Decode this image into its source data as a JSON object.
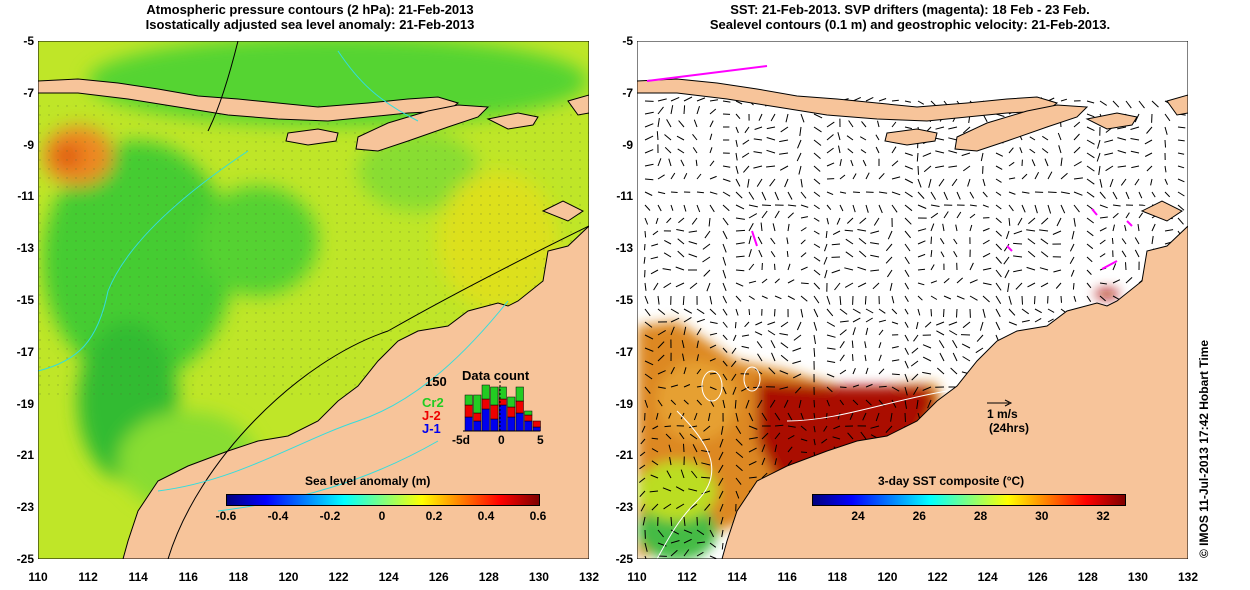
{
  "left_panel": {
    "title_line1": "Atmospheric pressure contours (2 hPa): 21-Feb-2013",
    "title_line2": "Isostatically adjusted sea level anomaly: 21-Feb-2013",
    "colorbar": {
      "title": "Sea level anomaly (m)",
      "ticks": [
        "-0.6",
        "-0.4",
        "-0.2",
        "0",
        "0.2",
        "0.4",
        "0.6"
      ]
    },
    "inset": {
      "title": "Data count",
      "ymax_label": "150",
      "series_labels": [
        "Cr2",
        "J-2",
        "J-1"
      ],
      "series_colors": [
        "#22cc22",
        "#ee0000",
        "#0000ee"
      ],
      "x_ticks": [
        "-5d",
        "0",
        "5"
      ]
    }
  },
  "right_panel": {
    "title_line1": "SST: 21-Feb-2013. SVP drifters (magenta): 18 Feb - 23 Feb.",
    "title_line2": "Sealevel contours (0.1 m) and geostrophic velocity: 21-Feb-2013.",
    "scale_arrow_label1": "1 m/s",
    "scale_arrow_label2": "(24hrs)",
    "colorbar": {
      "title": "3-day SST composite (°C)",
      "ticks": [
        "24",
        "26",
        "28",
        "30",
        "32"
      ]
    }
  },
  "axes": {
    "y_ticks": [
      "-5",
      "-7",
      "-9",
      "-11",
      "-13",
      "-15",
      "-17",
      "-19",
      "-21",
      "-23",
      "-25"
    ],
    "x_ticks": [
      "110",
      "112",
      "114",
      "116",
      "118",
      "120",
      "122",
      "124",
      "126",
      "128",
      "130",
      "132"
    ]
  },
  "credit": "© IMOS 11-Jul-2013 17:42 Hobart Time",
  "colors": {
    "land": "#f7c49a",
    "sea_green": "#66dd33",
    "sea_yellow": "#ccee22",
    "coast": "#000000",
    "isobath": "#33dddd",
    "drifter": "#ff00ff",
    "sst_hot": "#aa1100"
  }
}
